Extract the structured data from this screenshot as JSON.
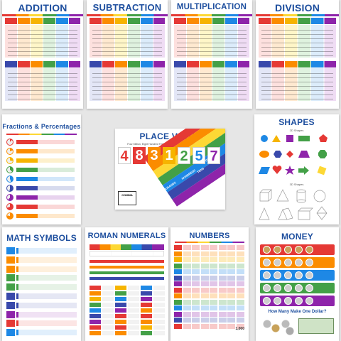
{
  "posters": {
    "addition": "ADDITION",
    "subtraction": "SUBTRACTION",
    "multiplication": "MULTIPLICATION",
    "division": "DIVISION",
    "fractions": "Fractions & Percentages",
    "place_value": "PLACE VALUE",
    "shapes": "SHAPES",
    "math_symbols": "MATH SYMBOLS",
    "roman_numerals": "ROMAN NUMERALS",
    "numbers": "NUMBERS",
    "money": "MONEY"
  },
  "place_value": {
    "subtitle": "Four Million, Eight Hundred Thirty One Thousand, Two Hundred Fifty Seven",
    "digits": [
      "4",
      "8",
      "3",
      "1",
      "2",
      "5",
      "7"
    ],
    "comma_label": "COMMA",
    "band_labels": [
      "MILLIONS",
      "THOUSANDS",
      "HUNDREDS",
      "TENS",
      "ONES"
    ]
  },
  "shapes": {
    "label_2d": "2D Shapes",
    "label_3d": "3D Shapes"
  },
  "money": {
    "question": "How Many Make One Dollar?"
  },
  "numbers": {
    "last_value": "1,000"
  },
  "palette": [
    "#e53935",
    "#fb8c00",
    "#fdd835",
    "#43a047",
    "#1e88e5",
    "#3949ab",
    "#8e24aa"
  ]
}
